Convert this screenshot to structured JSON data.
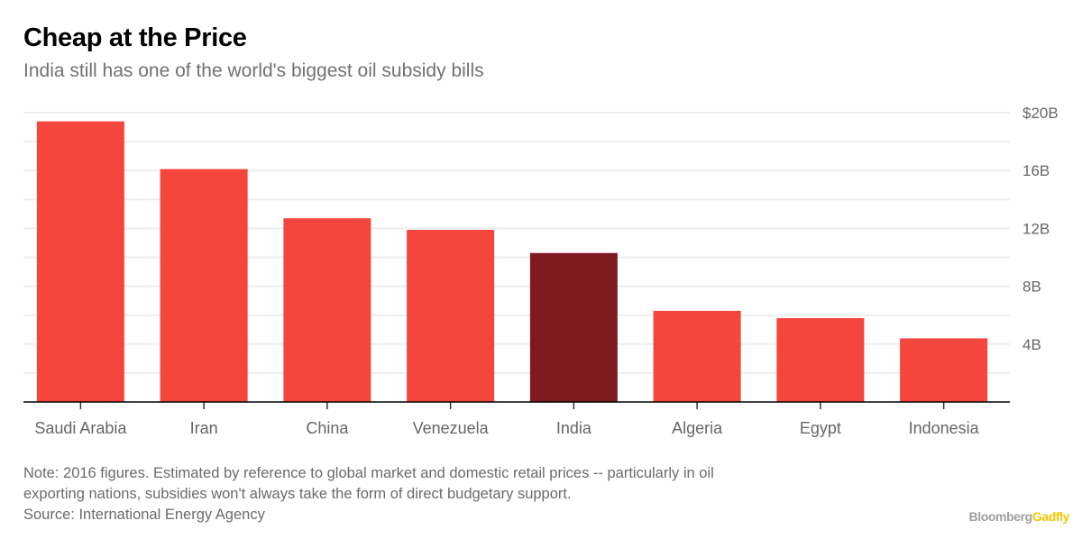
{
  "header": {
    "title": "Cheap at the Price",
    "subtitle": "India still has one of the world's biggest oil subsidy bills"
  },
  "chart_data": {
    "type": "bar",
    "title": "Cheap at the Price",
    "subtitle": "India still has one of the world's biggest oil subsidy bills",
    "xlabel": "",
    "ylabel": "",
    "categories": [
      "Saudi Arabia",
      "Iran",
      "China",
      "Venezuela",
      "India",
      "Algeria",
      "Egypt",
      "Indonesia"
    ],
    "values": [
      19.4,
      16.1,
      12.7,
      11.9,
      10.3,
      6.3,
      5.8,
      4.4
    ],
    "unit": "USD billions",
    "highlight": "India",
    "ylim": [
      0,
      20
    ],
    "yticks": [
      4,
      8,
      12,
      16,
      20
    ],
    "ytick_labels": [
      "4B",
      "8B",
      "12B",
      "16B",
      "$20B"
    ],
    "minor_gridlines_every": 2,
    "grid": true,
    "y_axis_position": "right",
    "legend": "none",
    "colors": {
      "bar": "#f4463d",
      "highlight": "#7f1920",
      "grid": "#eeeeee",
      "axis": "#000000"
    }
  },
  "footer": {
    "note_line1": "Note: 2016 figures. Estimated by reference to global market and domestic retail prices -- particularly in oil",
    "note_line2": "exporting nations, subsidies won't always take the form of direct budgetary support.",
    "source": "Source: International Energy Agency",
    "brand_part1": "Bloomberg",
    "brand_part2": "Gadfly"
  }
}
